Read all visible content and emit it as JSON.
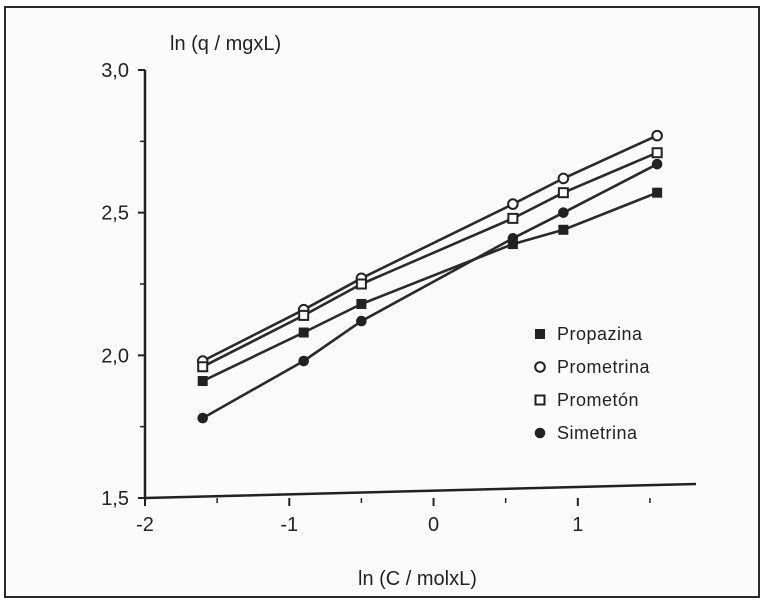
{
  "chart_data": {
    "type": "line",
    "ylabel": "ln (q / mgxL)",
    "xlabel": "ln (C / molxL)",
    "xlim": [
      -2,
      1.75
    ],
    "ylim": [
      1.5,
      3.0
    ],
    "xticks": [
      -2,
      -1,
      0,
      1
    ],
    "xtick_labels": [
      "-2",
      "-1",
      "0",
      "1"
    ],
    "yticks": [
      1.5,
      2.0,
      2.5,
      3.0
    ],
    "ytick_labels": [
      "1,5",
      "2,0",
      "2,5",
      "3,0"
    ],
    "grid": false,
    "legend": "right-center",
    "series": [
      {
        "name": "Propazina",
        "marker": "square-filled",
        "x": [
          -1.6,
          -0.9,
          -0.5,
          0.55,
          0.9,
          1.55
        ],
        "y": [
          1.91,
          2.08,
          2.18,
          2.39,
          2.44,
          2.57
        ]
      },
      {
        "name": "Prometrina",
        "marker": "circle-open",
        "x": [
          -1.6,
          -0.9,
          -0.5,
          0.55,
          0.9,
          1.55
        ],
        "y": [
          1.98,
          2.16,
          2.27,
          2.53,
          2.62,
          2.77
        ]
      },
      {
        "name": "Prometón",
        "marker": "square-open",
        "x": [
          -1.6,
          -0.9,
          -0.5,
          0.55,
          0.9,
          1.55
        ],
        "y": [
          1.96,
          2.14,
          2.25,
          2.48,
          2.57,
          2.71
        ]
      },
      {
        "name": "Simetrina",
        "marker": "circle-filled",
        "x": [
          -1.6,
          -0.9,
          -0.5,
          0.55,
          0.9,
          1.55
        ],
        "y": [
          1.78,
          1.98,
          2.12,
          2.41,
          2.5,
          2.67
        ]
      }
    ]
  }
}
